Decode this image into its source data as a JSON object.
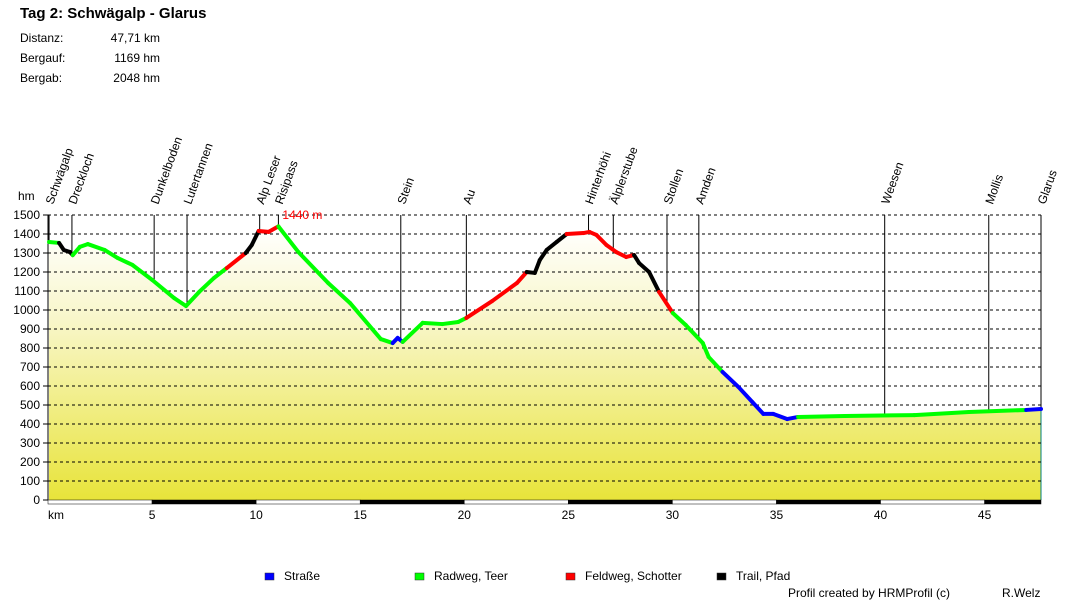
{
  "header": {
    "title": "Tag 2: Schwägalp - Glarus",
    "stats": [
      {
        "label": "Distanz:",
        "value": "47,71 km"
      },
      {
        "label": "Bergauf:",
        "value": "1169 hm"
      },
      {
        "label": "Bergab:",
        "value": "2048 hm"
      }
    ]
  },
  "chart_data": {
    "type": "line",
    "title": "Tag 2: Schwägalp - Glarus",
    "xlabel": "km",
    "ylabel": "hm",
    "xlim": [
      0,
      47.71
    ],
    "ylim": [
      0,
      1500
    ],
    "xticks": [
      5,
      10,
      15,
      20,
      25,
      30,
      35,
      40,
      45
    ],
    "yticks": [
      0,
      100,
      200,
      300,
      400,
      500,
      600,
      700,
      800,
      900,
      1000,
      1100,
      1200,
      1300,
      1400,
      1500
    ],
    "grid": true,
    "max_annotation": {
      "km": 11.07,
      "m": 1440,
      "text": "1440 m"
    },
    "surface_colors": {
      "S": "#0000ff",
      "G": "#00ff00",
      "R": "#ff0000",
      "B": "#000000"
    },
    "legend": [
      {
        "key": "S",
        "label": "Straße"
      },
      {
        "key": "G",
        "label": "Radweg, Teer"
      },
      {
        "key": "R",
        "label": "Feldweg, Schotter"
      },
      {
        "key": "B",
        "label": "Trail, Pfad"
      }
    ],
    "waypoints": [
      {
        "name": "Schwägalp",
        "km": 0.05
      },
      {
        "name": "Dreckloch",
        "km": 1.15
      },
      {
        "name": "Dunkelboden",
        "km": 5.1
      },
      {
        "name": "Lutertannen",
        "km": 6.68
      },
      {
        "name": "Alp Leser",
        "km": 10.17
      },
      {
        "name": "Risipass",
        "km": 11.07
      },
      {
        "name": "Stein",
        "km": 16.95
      },
      {
        "name": "Au",
        "km": 20.1
      },
      {
        "name": "Hinterhöhi",
        "km": 25.97
      },
      {
        "name": "Älplerstube",
        "km": 27.16
      },
      {
        "name": "Stollen",
        "km": 29.74
      },
      {
        "name": "Amden",
        "km": 31.27
      },
      {
        "name": "Weesen",
        "km": 40.2
      },
      {
        "name": "Mollis",
        "km": 45.2
      },
      {
        "name": "Glarus",
        "km": 47.71
      }
    ],
    "profile": [
      [
        0.05,
        1358,
        "G"
      ],
      [
        0.53,
        1353,
        "G"
      ],
      [
        0.76,
        1316,
        "B"
      ],
      [
        1.05,
        1305,
        "B"
      ],
      [
        1.19,
        1289,
        "B"
      ],
      [
        1.53,
        1332,
        "G"
      ],
      [
        1.91,
        1347,
        "G"
      ],
      [
        2.72,
        1316,
        "G"
      ],
      [
        3.34,
        1274,
        "G"
      ],
      [
        4.06,
        1237,
        "G"
      ],
      [
        5.01,
        1158,
        "G"
      ],
      [
        6.06,
        1063,
        "G"
      ],
      [
        6.63,
        1021,
        "G"
      ],
      [
        7.26,
        1095,
        "G"
      ],
      [
        7.97,
        1168,
        "G"
      ],
      [
        8.59,
        1221,
        "G"
      ],
      [
        9.5,
        1300,
        "R"
      ],
      [
        9.79,
        1342,
        "B"
      ],
      [
        10.12,
        1416,
        "B"
      ],
      [
        10.6,
        1411,
        "R"
      ],
      [
        11.07,
        1440,
        "R"
      ],
      [
        12.03,
        1305,
        "G"
      ],
      [
        13.46,
        1142,
        "G"
      ],
      [
        14.51,
        1037,
        "G"
      ],
      [
        15.99,
        847,
        "G"
      ],
      [
        16.56,
        826,
        "G"
      ],
      [
        16.8,
        853,
        "S"
      ],
      [
        17.04,
        832,
        "S"
      ],
      [
        18.0,
        932,
        "G"
      ],
      [
        18.95,
        926,
        "G"
      ],
      [
        19.71,
        937,
        "G"
      ],
      [
        20.1,
        958,
        "G"
      ],
      [
        21.34,
        1047,
        "R"
      ],
      [
        22.53,
        1142,
        "R"
      ],
      [
        23.0,
        1200,
        "R"
      ],
      [
        23.39,
        1195,
        "B"
      ],
      [
        23.63,
        1263,
        "B"
      ],
      [
        23.96,
        1316,
        "B"
      ],
      [
        24.44,
        1358,
        "B"
      ],
      [
        24.92,
        1400,
        "B"
      ],
      [
        25.73,
        1405,
        "R"
      ],
      [
        26.01,
        1411,
        "R"
      ],
      [
        26.35,
        1395,
        "R"
      ],
      [
        26.83,
        1342,
        "R"
      ],
      [
        27.3,
        1305,
        "R"
      ],
      [
        27.78,
        1279,
        "R"
      ],
      [
        28.16,
        1289,
        "R"
      ],
      [
        28.4,
        1247,
        "B"
      ],
      [
        28.88,
        1200,
        "B"
      ],
      [
        29.36,
        1095,
        "B"
      ],
      [
        30.02,
        984,
        "R"
      ],
      [
        30.64,
        921,
        "G"
      ],
      [
        31.46,
        826,
        "G"
      ],
      [
        31.74,
        753,
        "G"
      ],
      [
        32.41,
        674,
        "G"
      ],
      [
        33.17,
        595,
        "S"
      ],
      [
        33.84,
        516,
        "S"
      ],
      [
        34.37,
        453,
        "S"
      ],
      [
        34.84,
        453,
        "S"
      ],
      [
        35.51,
        426,
        "S"
      ],
      [
        36.04,
        437,
        "S"
      ],
      [
        38.28,
        442,
        "G"
      ],
      [
        41.62,
        447,
        "G"
      ],
      [
        44.25,
        463,
        "G"
      ],
      [
        47.0,
        474,
        "G"
      ],
      [
        47.71,
        479,
        "S"
      ]
    ]
  },
  "footer": {
    "credit": "Profil created by HRMProfil (c)",
    "author": "R.Welz"
  }
}
